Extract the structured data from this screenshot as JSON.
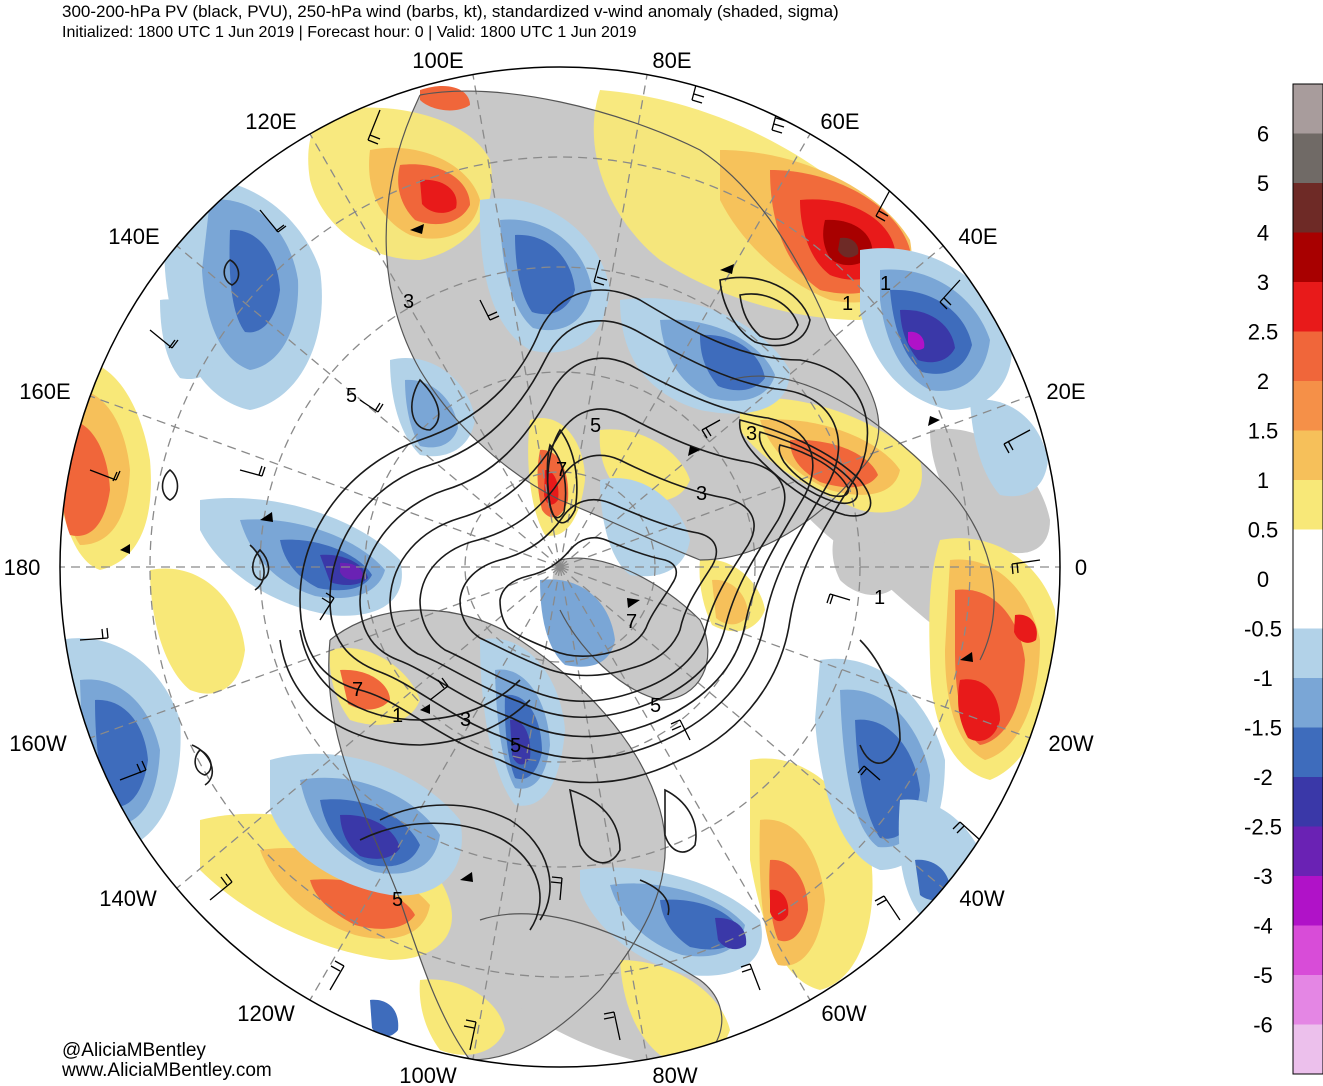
{
  "header": {
    "title": "300-200-hPa PV (black, PVU), 250-hPa wind (barbs, kt), standardized v-wind anomaly (shaded, sigma)",
    "subtitle": "Initialized: 1800 UTC 1 Jun 2019 | Forecast hour: 0 | Valid: 1800 UTC 1 Jun 2019"
  },
  "map": {
    "projection": "north-polar-stereographic",
    "longitude_labels": [
      "100E",
      "80E",
      "60E",
      "40E",
      "20E",
      "0",
      "20W",
      "40W",
      "60W",
      "80W",
      "100W",
      "120W",
      "140W",
      "160W",
      "180",
      "160E",
      "140E",
      "120E"
    ],
    "pv_contour_labels": [
      "1",
      "3",
      "5",
      "7",
      "5",
      "3",
      "1",
      "3",
      "5",
      "7",
      "1",
      "3",
      "5",
      "5",
      "1",
      "7"
    ]
  },
  "colorbar": {
    "labels": [
      "6",
      "5",
      "4",
      "3",
      "2.5",
      "2",
      "1.5",
      "1",
      "0.5",
      "0",
      "-0.5",
      "-1",
      "-1.5",
      "-2",
      "-2.5",
      "-3",
      "-4",
      "-5",
      "-6"
    ],
    "colors": [
      "#a89c9c",
      "#706a66",
      "#6e2a26",
      "#a80000",
      "#e81a1a",
      "#f0663a",
      "#f59048",
      "#f6c05a",
      "#f8e878",
      "#ffffff",
      "#ffffff",
      "#b2d2e8",
      "#7aa6d6",
      "#3e6cbc",
      "#3a38a8",
      "#6a22b4",
      "#b012c8",
      "#d84cd8",
      "#e486e4",
      "#ecc0ec"
    ]
  },
  "credits": {
    "handle": "@AliciaMBentley",
    "website": "www.AliciaMBentley.com"
  }
}
